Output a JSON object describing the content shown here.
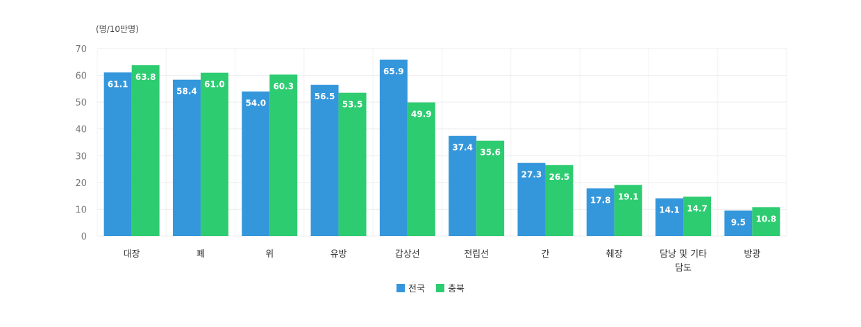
{
  "chart_data": {
    "type": "bar",
    "unit_label": "(명/10만명)",
    "categories": [
      "대장",
      "폐",
      "위",
      "유방",
      "갑상선",
      "전립선",
      "간",
      "췌장",
      "담낭 및 기타 담도",
      "방광"
    ],
    "category_lines": [
      [
        "대장"
      ],
      [
        "폐"
      ],
      [
        "위"
      ],
      [
        "유방"
      ],
      [
        "갑상선"
      ],
      [
        "전립선"
      ],
      [
        "간"
      ],
      [
        "췌장"
      ],
      [
        "담낭 및 기타",
        "담도"
      ],
      [
        "방광"
      ]
    ],
    "series": [
      {
        "name": "전국",
        "color": "#3597db",
        "values": [
          61.1,
          58.4,
          54.0,
          56.5,
          65.9,
          37.4,
          27.3,
          17.8,
          14.1,
          9.5
        ]
      },
      {
        "name": "충북",
        "color": "#2ecc71",
        "values": [
          63.8,
          61.0,
          60.3,
          53.5,
          49.9,
          35.6,
          26.5,
          19.1,
          14.7,
          10.8
        ]
      }
    ],
    "ylim": [
      0,
      70
    ],
    "yticks": [
      0,
      10,
      20,
      30,
      40,
      50,
      60,
      70
    ],
    "legend_position": "bottom-center",
    "grid": true
  }
}
